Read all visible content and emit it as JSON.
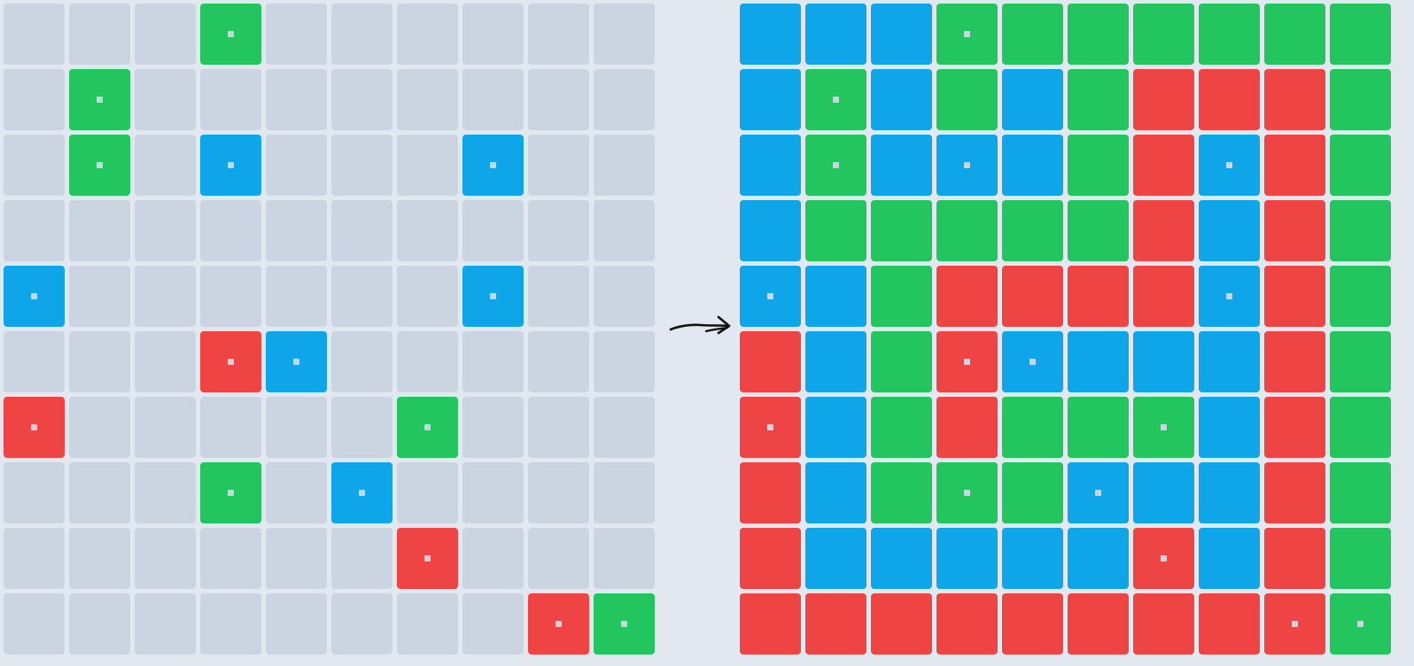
{
  "palette": {
    "0": "#cbd5e1",
    "B": "#0ea5e9",
    "G": "#22c55e",
    "R": "#ef4444"
  },
  "input_grid": [
    [
      "0",
      "0",
      "0",
      "G",
      "0",
      "0",
      "0",
      "0",
      "0",
      "0"
    ],
    [
      "0",
      "G",
      "0",
      "0",
      "0",
      "0",
      "0",
      "0",
      "0",
      "0"
    ],
    [
      "0",
      "G",
      "0",
      "B",
      "0",
      "0",
      "0",
      "B",
      "0",
      "0"
    ],
    [
      "0",
      "0",
      "0",
      "0",
      "0",
      "0",
      "0",
      "0",
      "0",
      "0"
    ],
    [
      "B",
      "0",
      "0",
      "0",
      "0",
      "0",
      "0",
      "B",
      "0",
      "0"
    ],
    [
      "0",
      "0",
      "0",
      "R",
      "B",
      "0",
      "0",
      "0",
      "0",
      "0"
    ],
    [
      "R",
      "0",
      "0",
      "0",
      "0",
      "0",
      "G",
      "0",
      "0",
      "0"
    ],
    [
      "0",
      "0",
      "0",
      "G",
      "0",
      "B",
      "0",
      "0",
      "0",
      "0"
    ],
    [
      "0",
      "0",
      "0",
      "0",
      "0",
      "0",
      "R",
      "0",
      "0",
      "0"
    ],
    [
      "0",
      "0",
      "0",
      "0",
      "0",
      "0",
      "0",
      "0",
      "R",
      "G"
    ]
  ],
  "output_grid": [
    [
      "B",
      "B",
      "B",
      "G",
      "G",
      "G",
      "G",
      "G",
      "G",
      "G"
    ],
    [
      "B",
      "G",
      "B",
      "G",
      "B",
      "G",
      "R",
      "R",
      "R",
      "G"
    ],
    [
      "B",
      "G",
      "B",
      "B",
      "B",
      "G",
      "R",
      "B",
      "R",
      "G"
    ],
    [
      "B",
      "G",
      "G",
      "G",
      "G",
      "G",
      "R",
      "B",
      "R",
      "G"
    ],
    [
      "B",
      "B",
      "G",
      "R",
      "R",
      "R",
      "R",
      "B",
      "R",
      "G"
    ],
    [
      "R",
      "B",
      "G",
      "R",
      "B",
      "B",
      "B",
      "B",
      "R",
      "G"
    ],
    [
      "R",
      "B",
      "G",
      "R",
      "G",
      "G",
      "G",
      "B",
      "R",
      "G"
    ],
    [
      "R",
      "B",
      "G",
      "G",
      "G",
      "B",
      "B",
      "B",
      "R",
      "G"
    ],
    [
      "R",
      "B",
      "B",
      "B",
      "B",
      "B",
      "R",
      "B",
      "R",
      "G"
    ],
    [
      "R",
      "R",
      "R",
      "R",
      "R",
      "R",
      "R",
      "R",
      "R",
      "G"
    ]
  ],
  "output_markers": [
    [
      0,
      3
    ],
    [
      1,
      1
    ],
    [
      2,
      1
    ],
    [
      2,
      3
    ],
    [
      2,
      7
    ],
    [
      4,
      0
    ],
    [
      4,
      7
    ],
    [
      5,
      3
    ],
    [
      5,
      4
    ],
    [
      6,
      0
    ],
    [
      6,
      6
    ],
    [
      7,
      3
    ],
    [
      7,
      5
    ],
    [
      8,
      6
    ],
    [
      9,
      8
    ],
    [
      9,
      9
    ]
  ]
}
